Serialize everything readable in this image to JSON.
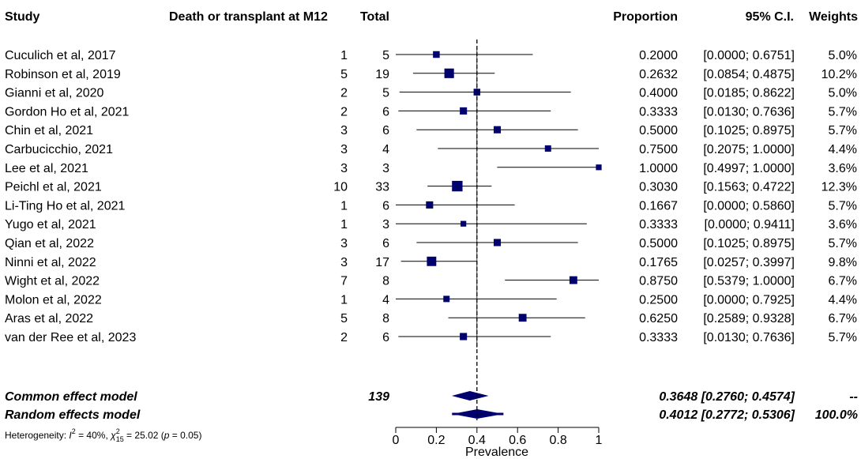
{
  "chart_data": {
    "type": "forest",
    "headers": {
      "study": "Study",
      "events": "Death or transplant at M12",
      "total": "Total",
      "proportion": "Proportion",
      "ci": "95% C.I.",
      "weights": "Weights"
    },
    "studies": [
      {
        "name": "Cuculich et al, 2017",
        "events": "1",
        "total": "5",
        "prop": 0.2,
        "lo": 0.0,
        "hi": 0.6751,
        "prop_text": "0.2000",
        "ci_text": "[0.0000; 0.6751]",
        "weight": 5.0,
        "weight_text": "5.0%"
      },
      {
        "name": "Robinson et al, 2019",
        "events": "5",
        "total": "19",
        "prop": 0.2632,
        "lo": 0.0854,
        "hi": 0.4875,
        "prop_text": "0.2632",
        "ci_text": "[0.0854; 0.4875]",
        "weight": 10.2,
        "weight_text": "10.2%"
      },
      {
        "name": "Gianni et al, 2020",
        "events": "2",
        "total": "5",
        "prop": 0.4,
        "lo": 0.0185,
        "hi": 0.8622,
        "prop_text": "0.4000",
        "ci_text": "[0.0185; 0.8622]",
        "weight": 5.0,
        "weight_text": "5.0%"
      },
      {
        "name": "Gordon Ho et al, 2021",
        "events": "2",
        "total": "6",
        "prop": 0.3333,
        "lo": 0.013,
        "hi": 0.7636,
        "prop_text": "0.3333",
        "ci_text": "[0.0130; 0.7636]",
        "weight": 5.7,
        "weight_text": "5.7%"
      },
      {
        "name": "Chin et al, 2021",
        "events": "3",
        "total": "6",
        "prop": 0.5,
        "lo": 0.1025,
        "hi": 0.8975,
        "prop_text": "0.5000",
        "ci_text": "[0.1025; 0.8975]",
        "weight": 5.7,
        "weight_text": "5.7%"
      },
      {
        "name": "Carbucicchio, 2021",
        "events": "3",
        "total": "4",
        "prop": 0.75,
        "lo": 0.2075,
        "hi": 1.0,
        "prop_text": "0.7500",
        "ci_text": "[0.2075; 1.0000]",
        "weight": 4.4,
        "weight_text": "4.4%"
      },
      {
        "name": "Lee et al, 2021",
        "events": "3",
        "total": "3",
        "prop": 1.0,
        "lo": 0.4997,
        "hi": 1.0,
        "prop_text": "1.0000",
        "ci_text": "[0.4997; 1.0000]",
        "weight": 3.6,
        "weight_text": "3.6%"
      },
      {
        "name": "Peichl et al, 2021",
        "events": "10",
        "total": "33",
        "prop": 0.303,
        "lo": 0.1563,
        "hi": 0.4722,
        "prop_text": "0.3030",
        "ci_text": "[0.1563; 0.4722]",
        "weight": 12.3,
        "weight_text": "12.3%"
      },
      {
        "name": "Li-Ting Ho et al, 2021",
        "events": "1",
        "total": "6",
        "prop": 0.1667,
        "lo": 0.0,
        "hi": 0.586,
        "prop_text": "0.1667",
        "ci_text": "[0.0000; 0.5860]",
        "weight": 5.7,
        "weight_text": "5.7%"
      },
      {
        "name": "Yugo et al, 2021",
        "events": "1",
        "total": "3",
        "prop": 0.3333,
        "lo": 0.0,
        "hi": 0.9411,
        "prop_text": "0.3333",
        "ci_text": "[0.0000; 0.9411]",
        "weight": 3.6,
        "weight_text": "3.6%"
      },
      {
        "name": "Qian et al, 2022",
        "events": "3",
        "total": "6",
        "prop": 0.5,
        "lo": 0.1025,
        "hi": 0.8975,
        "prop_text": "0.5000",
        "ci_text": "[0.1025; 0.8975]",
        "weight": 5.7,
        "weight_text": "5.7%"
      },
      {
        "name": "Ninni et al, 2022",
        "events": "3",
        "total": "17",
        "prop": 0.1765,
        "lo": 0.0257,
        "hi": 0.3997,
        "prop_text": "0.1765",
        "ci_text": "[0.0257; 0.3997]",
        "weight": 9.8,
        "weight_text": "9.8%"
      },
      {
        "name": "Wight et al, 2022",
        "events": "7",
        "total": "8",
        "prop": 0.875,
        "lo": 0.5379,
        "hi": 1.0,
        "prop_text": "0.8750",
        "ci_text": "[0.5379; 1.0000]",
        "weight": 6.7,
        "weight_text": "6.7%"
      },
      {
        "name": "Molon et al, 2022",
        "events": "1",
        "total": "4",
        "prop": 0.25,
        "lo": 0.0,
        "hi": 0.7925,
        "prop_text": "0.2500",
        "ci_text": "[0.0000; 0.7925]",
        "weight": 4.4,
        "weight_text": "4.4%"
      },
      {
        "name": "Aras et al, 2022",
        "events": "5",
        "total": "8",
        "prop": 0.625,
        "lo": 0.2589,
        "hi": 0.9328,
        "prop_text": "0.6250",
        "ci_text": "[0.2589; 0.9328]",
        "weight": 6.7,
        "weight_text": "6.7%"
      },
      {
        "name": "van der Ree et al, 2023",
        "events": "2",
        "total": "6",
        "prop": 0.3333,
        "lo": 0.013,
        "hi": 0.7636,
        "prop_text": "0.3333",
        "ci_text": "[0.0130; 0.7636]",
        "weight": 5.7,
        "weight_text": "5.7%"
      }
    ],
    "models": [
      {
        "name": "Common effect model",
        "total": "139",
        "prop": 0.3648,
        "lo": 0.276,
        "hi": 0.4574,
        "text": "0.3648 [0.2760; 0.4574]",
        "weight_text": "--"
      },
      {
        "name": "Random effects model",
        "total": "",
        "prop": 0.4012,
        "lo": 0.2772,
        "hi": 0.5306,
        "pi_lo": 0.2772,
        "pi_hi": 0.5306,
        "text": "0.4012 [0.2772; 0.5306]",
        "weight_text": "100.0%"
      }
    ],
    "heterogeneity": {
      "prefix": "Heterogeneity: ",
      "i2_label": "I",
      "i2_value": " = 40%, ",
      "chi_label": "χ",
      "chi_sub": "15",
      "chi_value": " = 25.02 (",
      "p_label": "p",
      "p_value": " = 0.05)"
    },
    "x_axis": {
      "label": "Prevalence",
      "ticks": [
        "0",
        "0.2",
        "0.4",
        "0.6",
        "0.8",
        "1"
      ],
      "tick_values": [
        0,
        0.2,
        0.4,
        0.6,
        0.8,
        1
      ],
      "range": [
        0,
        1
      ]
    },
    "reference_line": 0.4,
    "colors": {
      "marker": "#00006e",
      "line": "#000000"
    }
  }
}
